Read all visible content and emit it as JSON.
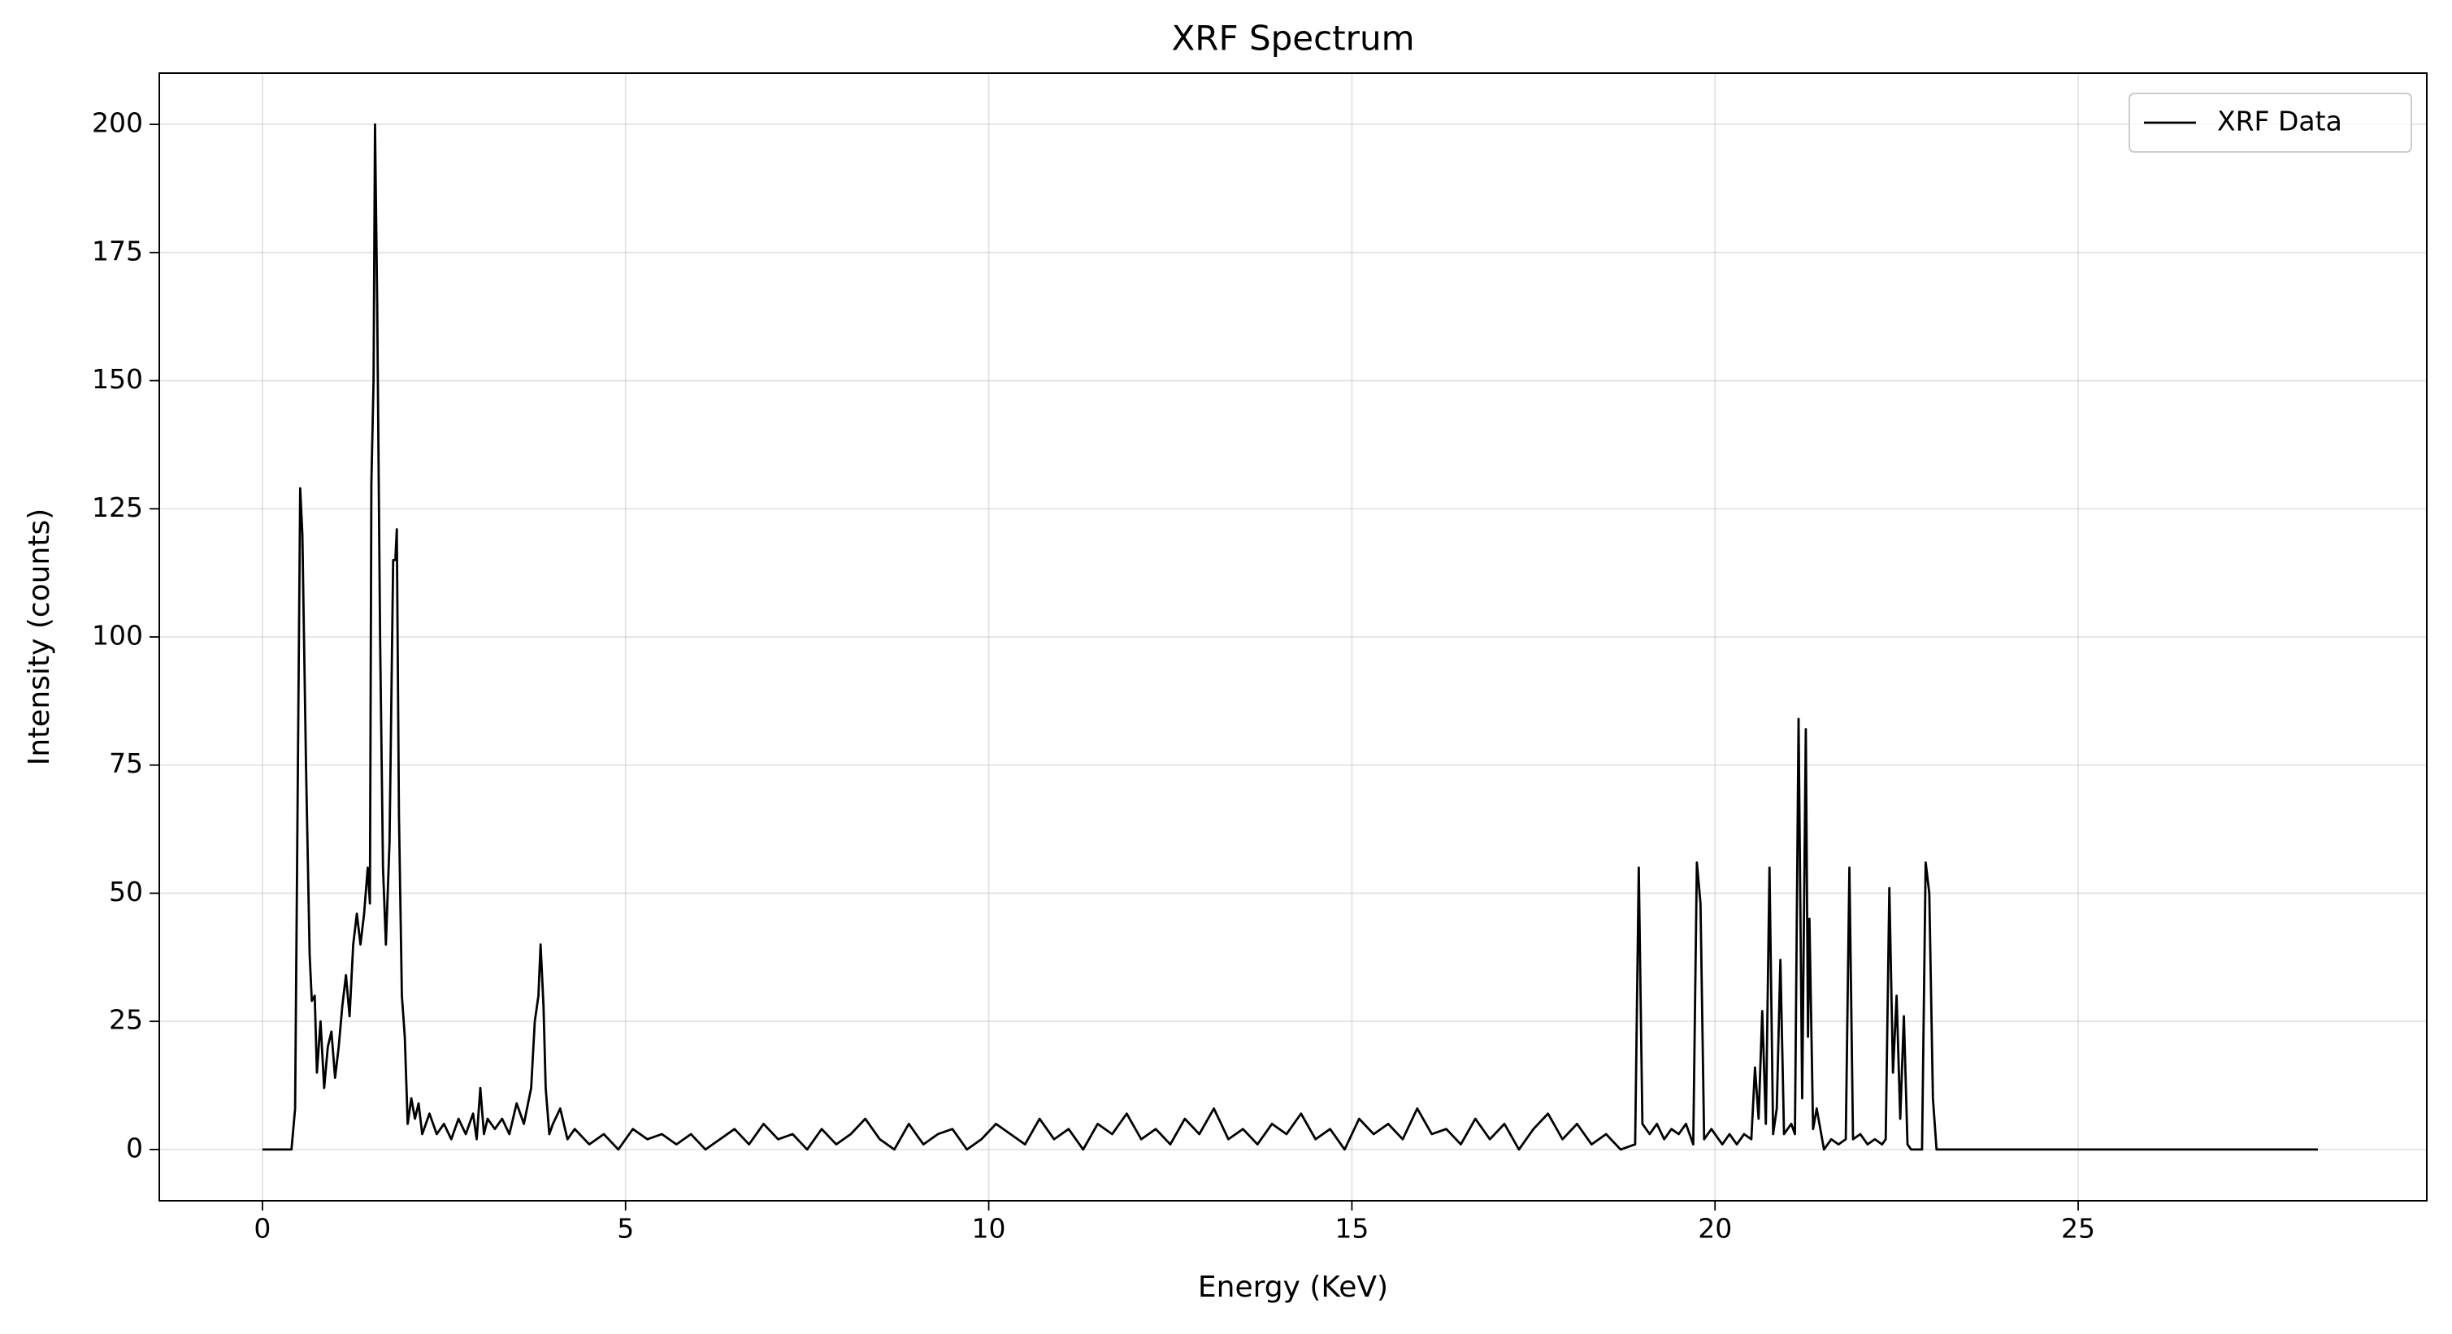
{
  "chart_data": {
    "type": "line",
    "title": "XRF Spectrum",
    "x_label": "Energy (KeV)",
    "y_label": "Intensity (counts)",
    "xlim": [
      -1.42,
      29.8
    ],
    "ylim": [
      -10,
      210
    ],
    "xticks": [
      0,
      5,
      10,
      15,
      20,
      25
    ],
    "yticks": [
      0,
      25,
      50,
      75,
      100,
      125,
      150,
      175,
      200
    ],
    "grid": true,
    "legend": "upper right",
    "x": [
      0,
      0.4,
      0.45,
      0.5,
      0.52,
      0.55,
      0.6,
      0.65,
      0.68,
      0.72,
      0.75,
      0.8,
      0.85,
      0.9,
      0.95,
      1.0,
      1.05,
      1.1,
      1.15,
      1.2,
      1.25,
      1.3,
      1.35,
      1.4,
      1.45,
      1.48,
      1.5,
      1.53,
      1.55,
      1.58,
      1.62,
      1.66,
      1.7,
      1.75,
      1.8,
      1.83,
      1.85,
      1.88,
      1.92,
      1.96,
      2.0,
      2.05,
      2.1,
      2.15,
      2.2,
      2.3,
      2.4,
      2.5,
      2.6,
      2.7,
      2.8,
      2.9,
      2.95,
      3.0,
      3.05,
      3.1,
      3.2,
      3.3,
      3.4,
      3.5,
      3.6,
      3.7,
      3.75,
      3.8,
      3.83,
      3.87,
      3.9,
      3.95,
      4.0,
      4.1,
      4.2,
      4.3,
      4.5,
      4.7,
      4.9,
      5.1,
      5.3,
      5.5,
      5.7,
      5.9,
      6.1,
      6.3,
      6.5,
      6.7,
      6.9,
      7.1,
      7.3,
      7.5,
      7.7,
      7.9,
      8.1,
      8.3,
      8.5,
      8.7,
      8.9,
      9.1,
      9.3,
      9.5,
      9.7,
      9.9,
      10.1,
      10.3,
      10.5,
      10.7,
      10.9,
      11.1,
      11.3,
      11.5,
      11.7,
      11.9,
      12.1,
      12.3,
      12.5,
      12.7,
      12.9,
      13.1,
      13.3,
      13.5,
      13.7,
      13.9,
      14.1,
      14.3,
      14.5,
      14.7,
      14.9,
      15.1,
      15.3,
      15.5,
      15.7,
      15.9,
      16.1,
      16.3,
      16.5,
      16.7,
      16.9,
      17.1,
      17.3,
      17.5,
      17.7,
      17.9,
      18.1,
      18.3,
      18.5,
      18.7,
      18.9,
      18.95,
      19.0,
      19.1,
      19.2,
      19.3,
      19.4,
      19.5,
      19.6,
      19.7,
      19.75,
      19.8,
      19.85,
      19.95,
      20.1,
      20.2,
      20.3,
      20.4,
      20.5,
      20.55,
      20.6,
      20.65,
      20.7,
      20.75,
      20.8,
      20.85,
      20.9,
      20.95,
      21.05,
      21.1,
      21.15,
      21.2,
      21.25,
      21.28,
      21.3,
      21.35,
      21.4,
      21.5,
      21.6,
      21.7,
      21.8,
      21.85,
      21.9,
      22.0,
      22.1,
      22.2,
      22.3,
      22.35,
      22.4,
      22.45,
      22.5,
      22.55,
      22.6,
      22.65,
      22.7,
      22.85,
      22.9,
      22.95,
      23.0,
      23.05,
      28.3
    ],
    "series": [
      {
        "name": "XRF Data",
        "color": "#000000",
        "values": [
          0,
          0,
          8,
          95,
          129,
          120,
          75,
          38,
          29,
          30,
          15,
          25,
          12,
          20,
          23,
          14,
          20,
          28,
          34,
          26,
          40,
          46,
          40,
          46,
          55,
          48,
          130,
          150,
          200,
          165,
          100,
          55,
          40,
          60,
          115,
          115,
          121,
          65,
          30,
          22,
          5,
          10,
          6,
          9,
          3,
          7,
          3,
          5,
          2,
          6,
          3,
          7,
          2,
          12,
          3,
          6,
          4,
          6,
          3,
          9,
          5,
          12,
          25,
          30,
          40,
          28,
          12,
          3,
          5,
          8,
          2,
          4,
          1,
          3,
          0,
          4,
          2,
          3,
          1,
          3,
          0,
          2,
          4,
          1,
          5,
          2,
          3,
          0,
          4,
          1,
          3,
          6,
          2,
          0,
          5,
          1,
          3,
          4,
          0,
          2,
          5,
          3,
          1,
          6,
          2,
          4,
          0,
          5,
          3,
          7,
          2,
          4,
          1,
          6,
          3,
          8,
          2,
          4,
          1,
          5,
          3,
          7,
          2,
          4,
          0,
          6,
          3,
          5,
          2,
          8,
          3,
          4,
          1,
          6,
          2,
          5,
          0,
          4,
          7,
          2,
          5,
          1,
          3,
          0,
          1,
          55,
          5,
          3,
          5,
          2,
          4,
          3,
          5,
          1,
          56,
          48,
          2,
          4,
          1,
          3,
          1,
          3,
          2,
          16,
          6,
          27,
          5,
          55,
          3,
          8,
          37,
          3,
          5,
          3,
          84,
          10,
          82,
          22,
          45,
          4,
          8,
          0,
          2,
          1,
          2,
          55,
          2,
          3,
          1,
          2,
          1,
          2,
          51,
          15,
          30,
          6,
          26,
          1,
          0,
          0,
          56,
          50,
          10,
          0,
          0
        ]
      }
    ]
  }
}
